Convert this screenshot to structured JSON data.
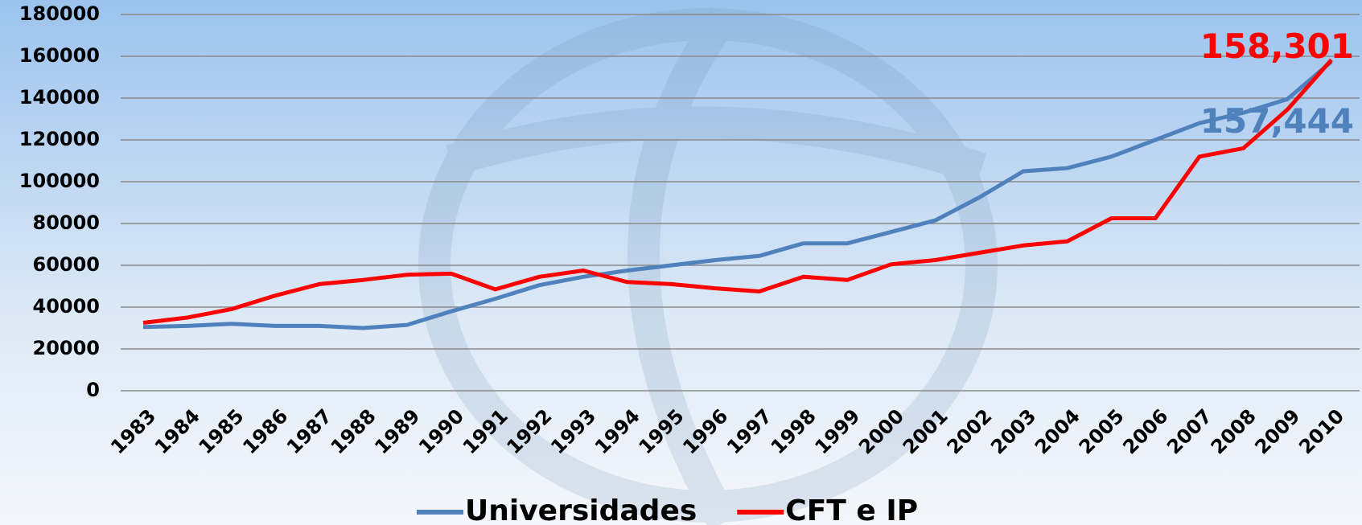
{
  "chart_data": {
    "type": "line",
    "categories": [
      "1983",
      "1984",
      "1985",
      "1986",
      "1987",
      "1988",
      "1989",
      "1990",
      "1991",
      "1992",
      "1993",
      "1994",
      "1995",
      "1996",
      "1997",
      "1998",
      "1999",
      "2000",
      "2001",
      "2002",
      "2003",
      "2004",
      "2005",
      "2006",
      "2007",
      "2008",
      "2009",
      "2010"
    ],
    "series": [
      {
        "name": "Universidades",
        "color": "#4f81bd",
        "values": [
          30500,
          31000,
          32000,
          31000,
          31000,
          30000,
          31500,
          38000,
          44000,
          50500,
          54500,
          57500,
          60000,
          62500,
          64500,
          70500,
          70500,
          76000,
          81500,
          92500,
          105000,
          106500,
          112000,
          120000,
          128000,
          133000,
          139500,
          157444
        ],
        "value_labels": [
          null,
          null,
          null,
          null,
          null,
          null,
          null,
          null,
          null,
          null,
          null,
          null,
          null,
          null,
          null,
          null,
          null,
          null,
          null,
          null,
          null,
          null,
          null,
          null,
          null,
          null,
          null,
          "157,444"
        ]
      },
      {
        "name": "CFT e IP",
        "color": "#ff0000",
        "values": [
          32500,
          35000,
          39000,
          45500,
          51000,
          53000,
          55500,
          56000,
          48500,
          54500,
          57500,
          52000,
          51000,
          49000,
          47500,
          54500,
          53000,
          60500,
          62500,
          66000,
          69500,
          71500,
          82500,
          82500,
          112000,
          116000,
          134500,
          158301
        ],
        "value_labels": [
          null,
          null,
          null,
          null,
          null,
          null,
          null,
          null,
          null,
          null,
          null,
          null,
          null,
          null,
          null,
          null,
          null,
          null,
          null,
          null,
          null,
          null,
          null,
          null,
          null,
          null,
          null,
          "158,301"
        ]
      }
    ],
    "ylim": [
      0,
      180000
    ],
    "yticks": [
      0,
      20000,
      40000,
      60000,
      80000,
      100000,
      120000,
      140000,
      160000,
      180000
    ],
    "grid": true,
    "legend": "bottom"
  }
}
